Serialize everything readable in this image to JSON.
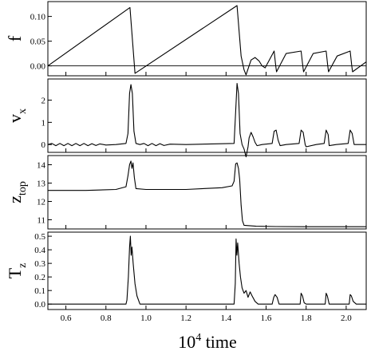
{
  "chart_data": {
    "type": "line",
    "xlabel_base": "10",
    "xlabel_exp": "4",
    "xlabel_rest": " time",
    "xlim": [
      0.51,
      2.1
    ],
    "xticks": [
      "0.6",
      "0.8",
      "1.0",
      "1.2",
      "1.4",
      "1.6",
      "1.8",
      "2.0"
    ],
    "panels": [
      {
        "id": "f",
        "ylabel_main": "f",
        "ylabel_sub": "",
        "ylim": [
          -0.02,
          0.13
        ],
        "yticks": [
          "0.00",
          "0.05",
          "0.10"
        ],
        "zero_line": true,
        "points": [
          [
            0.51,
            0.0
          ],
          [
            0.92,
            0.118
          ],
          [
            0.945,
            -0.015
          ],
          [
            1.455,
            0.122
          ],
          [
            1.475,
            0.02
          ],
          [
            1.49,
            -0.008
          ],
          [
            1.5,
            -0.018
          ],
          [
            1.515,
            0.0
          ],
          [
            1.525,
            0.012
          ],
          [
            1.545,
            0.017
          ],
          [
            1.565,
            0.01
          ],
          [
            1.58,
            0.0
          ],
          [
            1.595,
            -0.004
          ],
          [
            1.64,
            0.03
          ],
          [
            1.648,
            0.0
          ],
          [
            1.652,
            -0.012
          ],
          [
            1.7,
            0.025
          ],
          [
            1.775,
            0.03
          ],
          [
            1.783,
            0.0
          ],
          [
            1.787,
            -0.012
          ],
          [
            1.835,
            0.025
          ],
          [
            1.9,
            0.03
          ],
          [
            1.908,
            0.0
          ],
          [
            1.912,
            -0.012
          ],
          [
            1.955,
            0.02
          ],
          [
            2.02,
            0.03
          ],
          [
            2.028,
            0.0
          ],
          [
            2.032,
            -0.012
          ],
          [
            2.1,
            0.008
          ]
        ]
      },
      {
        "id": "vx",
        "ylabel_main": "v",
        "ylabel_sub": "x",
        "ylim": [
          -0.35,
          2.95
        ],
        "yticks": [
          "0",
          "1",
          "2"
        ],
        "zero_line": false,
        "points": [
          [
            0.51,
            0.0
          ],
          [
            0.53,
            0.05
          ],
          [
            0.55,
            -0.05
          ],
          [
            0.57,
            0.05
          ],
          [
            0.59,
            -0.05
          ],
          [
            0.61,
            0.05
          ],
          [
            0.63,
            -0.05
          ],
          [
            0.65,
            0.05
          ],
          [
            0.67,
            -0.05
          ],
          [
            0.69,
            0.05
          ],
          [
            0.71,
            -0.05
          ],
          [
            0.73,
            0.04
          ],
          [
            0.75,
            -0.04
          ],
          [
            0.77,
            0.03
          ],
          [
            0.8,
            -0.02
          ],
          [
            0.85,
            0.0
          ],
          [
            0.9,
            0.05
          ],
          [
            0.91,
            0.5
          ],
          [
            0.918,
            2.3
          ],
          [
            0.925,
            2.7
          ],
          [
            0.932,
            2.3
          ],
          [
            0.94,
            0.6
          ],
          [
            0.95,
            0.05
          ],
          [
            0.97,
            0.0
          ],
          [
            0.99,
            0.05
          ],
          [
            1.01,
            -0.05
          ],
          [
            1.03,
            0.05
          ],
          [
            1.05,
            -0.05
          ],
          [
            1.07,
            0.04
          ],
          [
            1.09,
            -0.04
          ],
          [
            1.12,
            0.02
          ],
          [
            1.2,
            0.0
          ],
          [
            1.44,
            0.05
          ],
          [
            1.448,
            1.5
          ],
          [
            1.455,
            2.75
          ],
          [
            1.462,
            2.3
          ],
          [
            1.47,
            0.5
          ],
          [
            1.48,
            0.0
          ],
          [
            1.49,
            -0.2
          ],
          [
            1.5,
            -0.55
          ],
          [
            1.51,
            -0.1
          ],
          [
            1.515,
            0.3
          ],
          [
            1.525,
            0.55
          ],
          [
            1.535,
            0.35
          ],
          [
            1.545,
            0.1
          ],
          [
            1.555,
            -0.05
          ],
          [
            1.58,
            0.0
          ],
          [
            1.63,
            0.05
          ],
          [
            1.64,
            0.6
          ],
          [
            1.65,
            0.65
          ],
          [
            1.66,
            0.2
          ],
          [
            1.67,
            -0.05
          ],
          [
            1.7,
            0.0
          ],
          [
            1.765,
            0.05
          ],
          [
            1.775,
            0.65
          ],
          [
            1.785,
            0.55
          ],
          [
            1.795,
            0.0
          ],
          [
            1.8,
            -0.1
          ],
          [
            1.85,
            0.0
          ],
          [
            1.89,
            0.05
          ],
          [
            1.9,
            0.65
          ],
          [
            1.91,
            0.45
          ],
          [
            1.915,
            -0.05
          ],
          [
            1.95,
            0.0
          ],
          [
            2.01,
            0.05
          ],
          [
            2.02,
            0.65
          ],
          [
            2.03,
            0.5
          ],
          [
            2.04,
            0.0
          ],
          [
            2.1,
            0.0
          ]
        ]
      },
      {
        "id": "ztop",
        "ylabel_main": "z",
        "ylabel_sub": "top",
        "ylim": [
          10.5,
          14.5
        ],
        "yticks": [
          "11",
          "12",
          "13",
          "14"
        ],
        "zero_line": false,
        "points": [
          [
            0.51,
            12.6
          ],
          [
            0.7,
            12.6
          ],
          [
            0.85,
            12.65
          ],
          [
            0.9,
            12.8
          ],
          [
            0.91,
            13.4
          ],
          [
            0.918,
            14.0
          ],
          [
            0.925,
            14.2
          ],
          [
            0.93,
            13.8
          ],
          [
            0.935,
            14.1
          ],
          [
            0.942,
            13.3
          ],
          [
            0.95,
            12.7
          ],
          [
            1.0,
            12.65
          ],
          [
            1.2,
            12.65
          ],
          [
            1.38,
            12.75
          ],
          [
            1.43,
            12.85
          ],
          [
            1.44,
            13.1
          ],
          [
            1.448,
            14.05
          ],
          [
            1.455,
            14.1
          ],
          [
            1.462,
            13.8
          ],
          [
            1.468,
            13.2
          ],
          [
            1.475,
            11.8
          ],
          [
            1.482,
            10.95
          ],
          [
            1.49,
            10.7
          ],
          [
            1.55,
            10.65
          ],
          [
            1.65,
            10.63
          ],
          [
            1.8,
            10.62
          ],
          [
            1.95,
            10.62
          ],
          [
            2.1,
            10.62
          ]
        ]
      },
      {
        "id": "tz",
        "ylabel_main": "T",
        "ylabel_sub": "z",
        "ylim": [
          -0.04,
          0.53
        ],
        "yticks": [
          "0.0",
          "0.1",
          "0.2",
          "0.3",
          "0.4",
          "0.5"
        ],
        "zero_line": false,
        "points": [
          [
            0.51,
            0.0
          ],
          [
            0.9,
            0.0
          ],
          [
            0.905,
            0.03
          ],
          [
            0.912,
            0.2
          ],
          [
            0.918,
            0.42
          ],
          [
            0.922,
            0.5
          ],
          [
            0.926,
            0.36
          ],
          [
            0.93,
            0.42
          ],
          [
            0.936,
            0.3
          ],
          [
            0.945,
            0.15
          ],
          [
            0.955,
            0.06
          ],
          [
            0.97,
            0.0
          ],
          [
            1.44,
            0.0
          ],
          [
            1.446,
            0.15
          ],
          [
            1.45,
            0.48
          ],
          [
            1.454,
            0.36
          ],
          [
            1.458,
            0.45
          ],
          [
            1.465,
            0.3
          ],
          [
            1.472,
            0.2
          ],
          [
            1.48,
            0.12
          ],
          [
            1.49,
            0.08
          ],
          [
            1.5,
            0.1
          ],
          [
            1.51,
            0.05
          ],
          [
            1.52,
            0.09
          ],
          [
            1.53,
            0.06
          ],
          [
            1.545,
            0.02
          ],
          [
            1.56,
            0.0
          ],
          [
            1.63,
            0.0
          ],
          [
            1.638,
            0.05
          ],
          [
            1.645,
            0.07
          ],
          [
            1.655,
            0.05
          ],
          [
            1.665,
            0.0
          ],
          [
            1.77,
            0.0
          ],
          [
            1.775,
            0.08
          ],
          [
            1.782,
            0.06
          ],
          [
            1.79,
            0.01
          ],
          [
            1.8,
            0.0
          ],
          [
            1.895,
            0.0
          ],
          [
            1.9,
            0.08
          ],
          [
            1.906,
            0.06
          ],
          [
            1.915,
            0.0
          ],
          [
            2.015,
            0.0
          ],
          [
            2.02,
            0.07
          ],
          [
            2.026,
            0.06
          ],
          [
            2.035,
            0.02
          ],
          [
            2.05,
            0.0
          ],
          [
            2.1,
            0.0
          ]
        ]
      }
    ]
  }
}
